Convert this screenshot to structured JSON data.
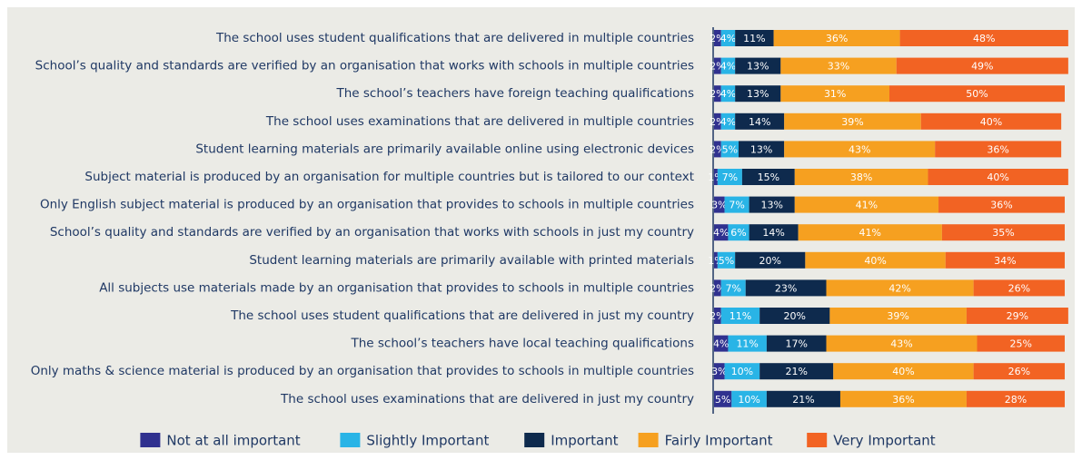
{
  "chart_data": {
    "type": "stacked-barh",
    "categories": [
      "The school uses student qualifications that are delivered in multiple countries",
      "School’s quality and standards are verified by an organisation that works with schools in multiple countries",
      "The school’s teachers have foreign teaching qualifications",
      "The school uses examinations that are delivered in multiple countries",
      "Student learning materials are primarily available online using electronic devices",
      "Subject material is produced by an organisation for multiple countries but is tailored to our context",
      "Only English subject material is produced by an organisation that provides to schools in multiple countries",
      "School’s quality and standards are verified by an organisation that works with schools in just my country",
      "Student learning materials are primarily available with printed materials",
      "All subjects use materials made by an organisation that provides to schools in multiple countries",
      "The school uses student qualifications that are delivered in just my country",
      "The school’s teachers have local teaching qualifications",
      "Only maths & science material is produced by an organisation that provides to schools in multiple countries",
      "The school uses examinations that are delivered in just my country"
    ],
    "series": [
      {
        "name": "Not at all important",
        "color": "#30318f",
        "values": [
          2,
          2,
          2,
          2,
          2,
          1,
          3,
          4,
          1,
          2,
          2,
          4,
          3,
          5
        ],
        "value_labels": [
          "2%",
          "2%",
          "2%",
          "2%",
          "2%",
          "1%",
          "3%",
          "4%",
          "1%",
          "2%",
          "2%",
          "4%",
          "3%",
          "5%"
        ]
      },
      {
        "name": "Slightly Important",
        "color": "#29b4e6",
        "values": [
          4,
          4,
          4,
          4,
          5,
          7,
          7,
          6,
          5,
          7,
          11,
          11,
          10,
          10
        ],
        "value_labels": [
          "4%",
          "4%",
          "4%",
          "4%",
          "5%",
          "7%",
          "7%",
          "6%",
          "5%",
          "7%",
          "11%",
          "11%",
          "10%",
          "10%"
        ]
      },
      {
        "name": "Important",
        "color": "#0e2a4d",
        "values": [
          11,
          13,
          13,
          14,
          13,
          15,
          13,
          14,
          20,
          23,
          20,
          17,
          21,
          21
        ],
        "value_labels": [
          "11%",
          "13%",
          "13%",
          "14%",
          "13%",
          "15%",
          "13%",
          "14%",
          "20%",
          "23%",
          "20%",
          "17%",
          "21%",
          "21%"
        ]
      },
      {
        "name": "Fairly Important",
        "color": "#f6a020",
        "values": [
          36,
          33,
          31,
          39,
          43,
          38,
          41,
          41,
          40,
          42,
          39,
          43,
          40,
          36
        ],
        "value_labels": [
          "36%",
          "33%",
          "31%",
          "39%",
          "43%",
          "38%",
          "41%",
          "41%",
          "40%",
          "42%",
          "39%",
          "43%",
          "40%",
          "36%"
        ]
      },
      {
        "name": "Very Important",
        "color": "#f26323",
        "values": [
          48,
          49,
          50,
          40,
          36,
          40,
          36,
          35,
          34,
          26,
          29,
          25,
          26,
          28
        ],
        "value_labels": [
          "48%",
          "49%",
          "50%",
          "40%",
          "36%",
          "40%",
          "36%",
          "35%",
          "34%",
          "26%",
          "29%",
          "25%",
          "26%",
          "28%"
        ]
      }
    ],
    "legend": "bottom"
  }
}
